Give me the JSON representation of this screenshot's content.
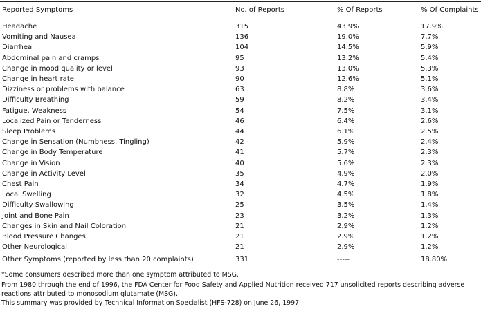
{
  "table": {
    "header": [
      "Reported Symptoms",
      "No. of Reports",
      "% Of Reports",
      "% Of Complaints"
    ],
    "rows": [
      [
        "Headache",
        "315",
        "43.9%",
        "17.9%"
      ],
      [
        "Vomiting and Nausea",
        "136",
        "19.0%",
        "7.7%"
      ],
      [
        "Diarrhea",
        "104",
        "14.5%",
        "5.9%"
      ],
      [
        "Abdominal pain and cramps",
        "95",
        "13.2%",
        "5.4%"
      ],
      [
        "Change in mood quality or level",
        "93",
        "13.0%",
        "5.3%"
      ],
      [
        "Change in heart rate",
        "90",
        "12.6%",
        "5.1%"
      ],
      [
        "Dizziness or problems with balance",
        "63",
        "8.8%",
        "3.6%"
      ],
      [
        "Difficulty Breathing",
        "59",
        "8.2%",
        "3.4%"
      ],
      [
        "Fatigue, Weakness",
        "54",
        "7.5%",
        "3.1%"
      ],
      [
        "Localized Pain or Tenderness",
        "46",
        "6.4%",
        "2.6%"
      ],
      [
        "Sleep Problems",
        "44",
        "6.1%",
        "2.5%"
      ],
      [
        "Change in Sensation (Numbness, Tingling)",
        "42",
        "5.9%",
        "2.4%"
      ],
      [
        "Change in Body Temperature",
        "41",
        "5.7%",
        "2.3%"
      ],
      [
        "Change in Vision",
        "40",
        "5.6%",
        "2.3%"
      ],
      [
        "Change in Activity Level",
        "35",
        "4.9%",
        "2.0%"
      ],
      [
        "Chest Pain",
        "34",
        "4.7%",
        "1.9%"
      ],
      [
        "Local Swelling",
        "32",
        "4.5%",
        "1.8%"
      ],
      [
        "Difficulty Swallowing",
        "25",
        "3.5%",
        "1.4%"
      ],
      [
        "Joint and Bone Pain",
        "23",
        "3.2%",
        "1.3%"
      ],
      [
        "Changes in Skin and Nail Coloration",
        "21",
        "2.9%",
        "1.2%"
      ],
      [
        "Blood Pressure Changes",
        "21",
        "2.9%",
        "1.2%"
      ],
      [
        "Other Neurological",
        "21",
        "2.9%",
        "1.2%"
      ],
      [
        "Other Symptoms (reported by less than 20 complaints)",
        "331",
        "-----",
        "18.80%"
      ]
    ]
  },
  "footnotes": [
    "*Some consumers described more than one symptom attributed to MSG.",
    "From 1980 through the end of 1996, the FDA Center for Food Safety and Applied Nutrition received 717 unsolicited reports describing adverse reactions attributed to monosodium glutamate (MSG).",
    "This summary was provided by Technical Information Specialist (HFS-728) on June 26, 1997."
  ]
}
